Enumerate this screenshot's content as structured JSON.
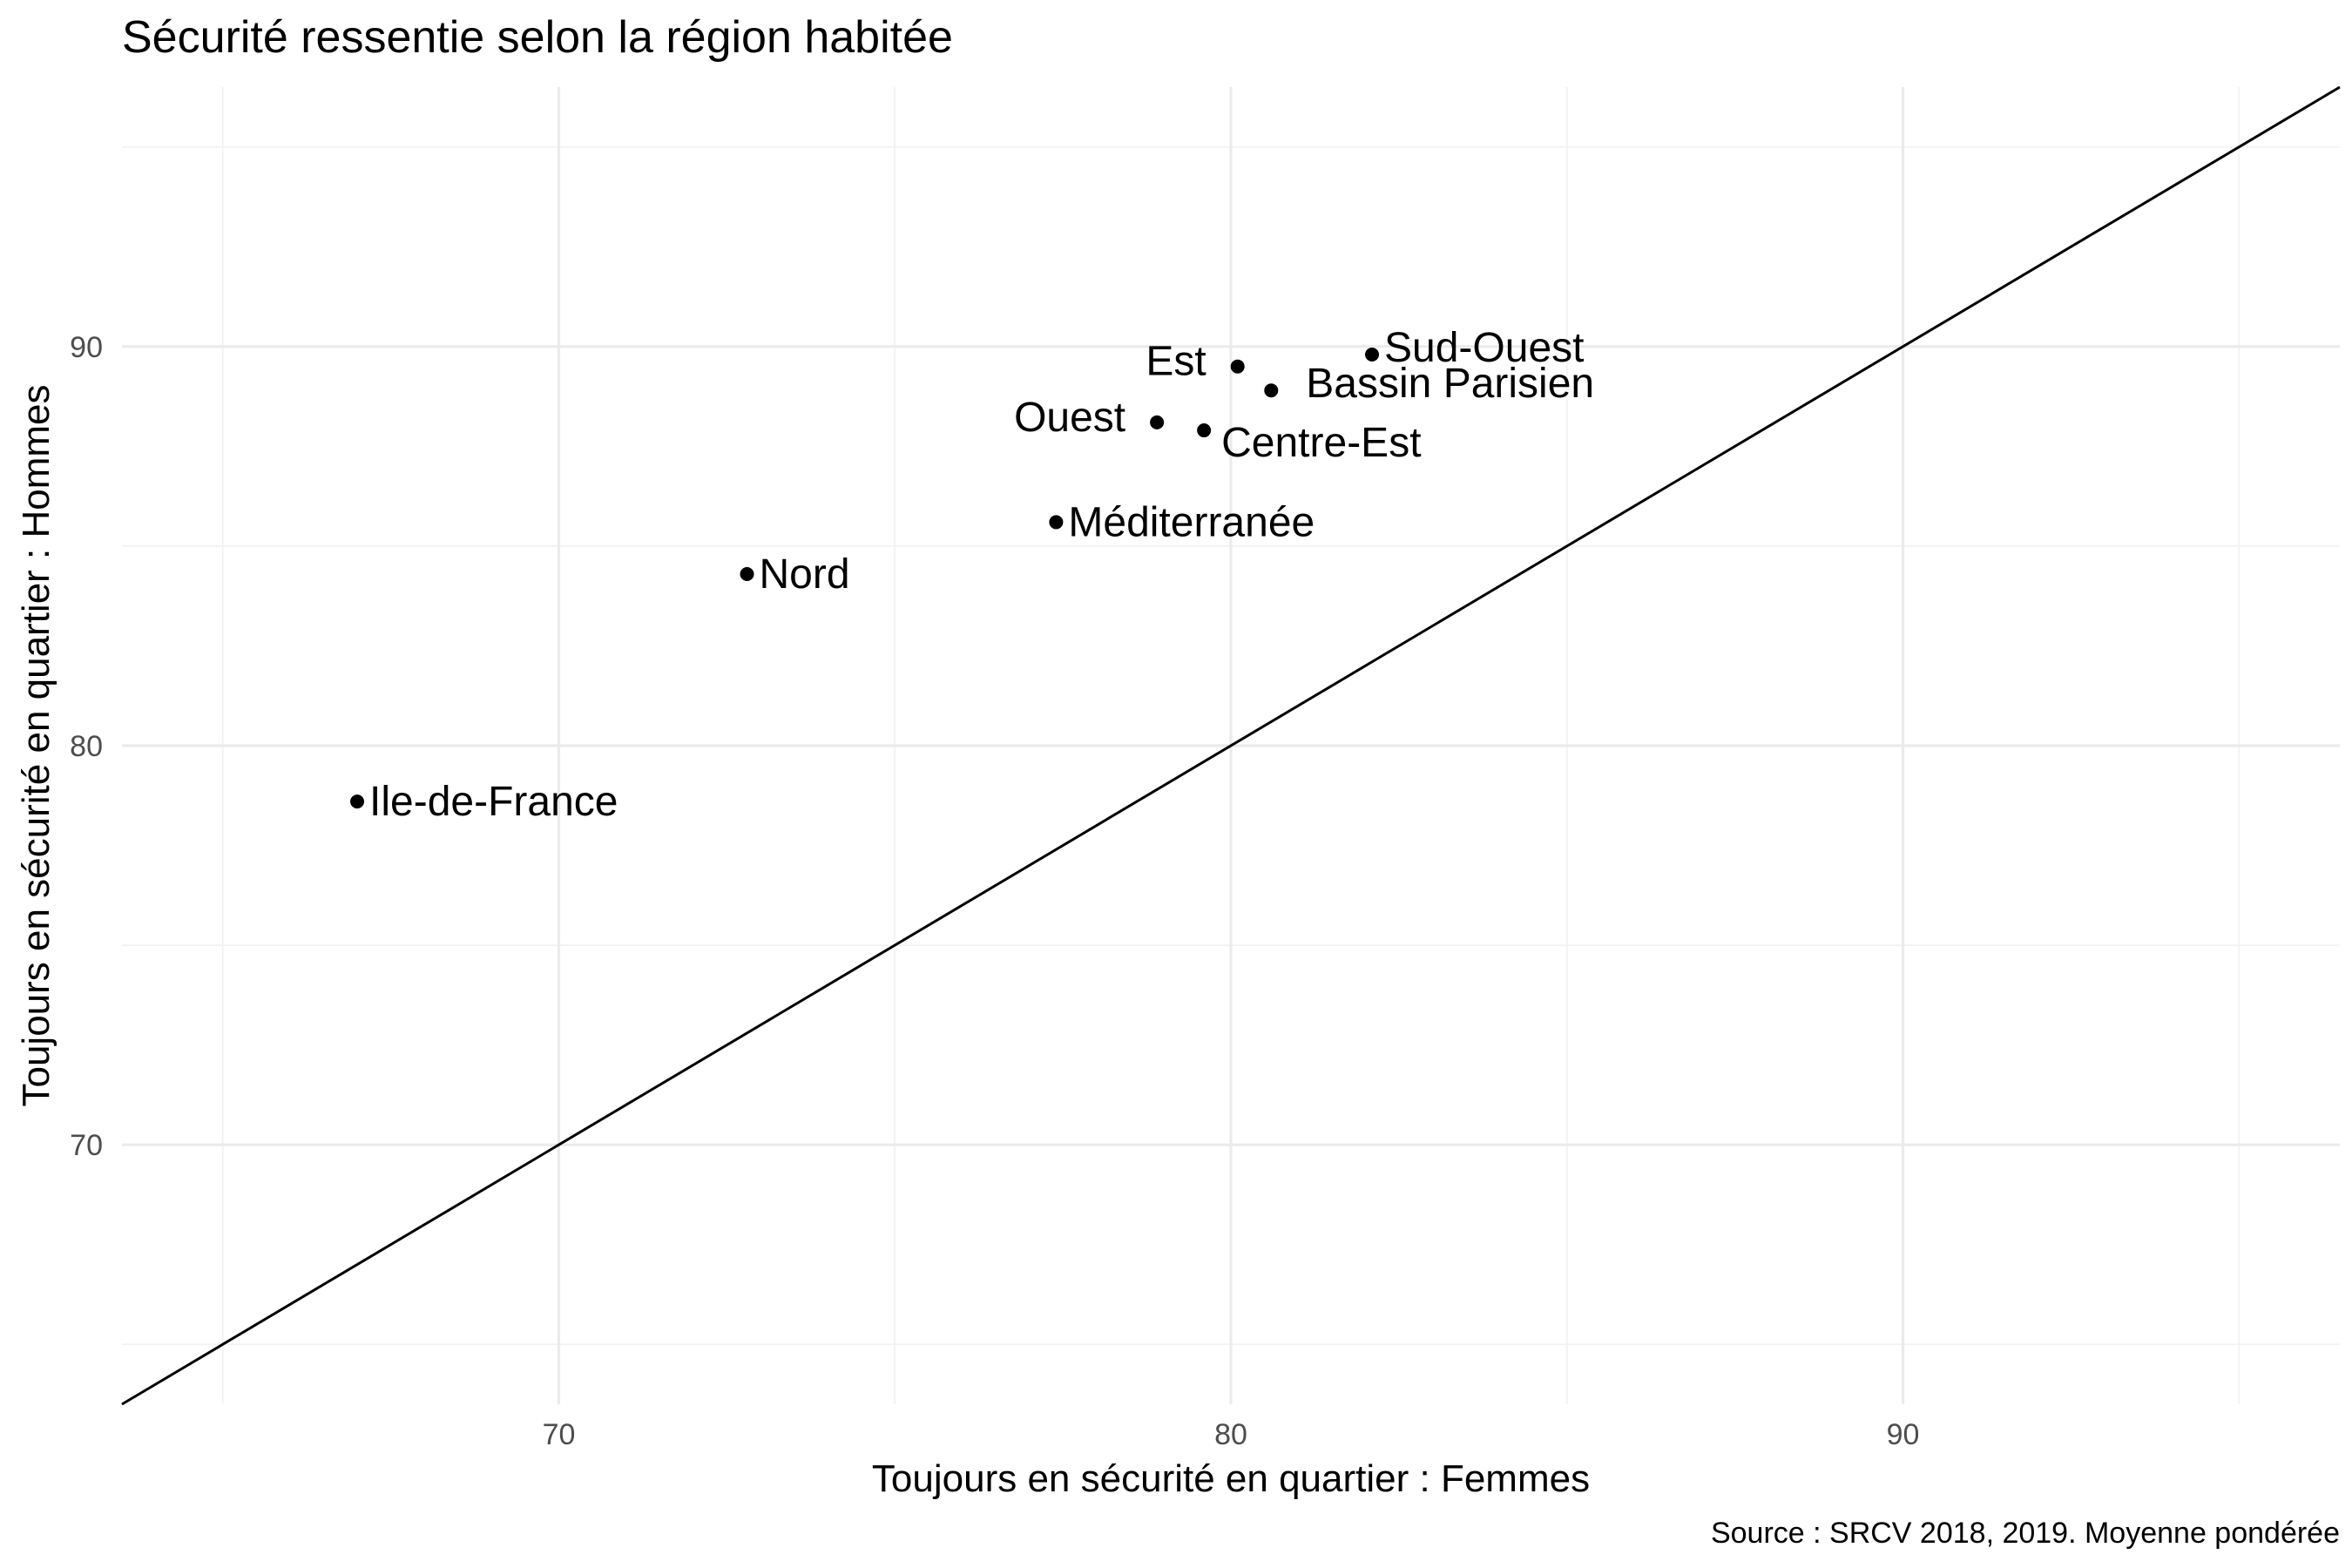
{
  "chart_data": {
    "type": "scatter",
    "title": "Sécurité ressentie selon la région habitée",
    "xlabel": "Toujours en sécurité en quartier : Femmes",
    "ylabel": "Toujours en sécurité en quartier : Hommes",
    "caption": "Source : SRCV 2018, 2019. Moyenne pondérée",
    "xlim": [
      63.5,
      96.5
    ],
    "ylim": [
      63.5,
      96.5
    ],
    "x_ticks": [
      70,
      80,
      90
    ],
    "y_ticks": [
      70,
      80,
      90
    ],
    "grid": true,
    "reference_line": {
      "slope": 1,
      "intercept": 0
    },
    "points": [
      {
        "label": "Ile-de-France",
        "x": 67.0,
        "y": 78.6
      },
      {
        "label": "Nord",
        "x": 72.8,
        "y": 84.3
      },
      {
        "label": "Méditerranée",
        "x": 77.4,
        "y": 85.6
      },
      {
        "label": "Ouest",
        "x": 78.9,
        "y": 88.1
      },
      {
        "label": "Centre-Est",
        "x": 79.6,
        "y": 87.9
      },
      {
        "label": "Est",
        "x": 80.1,
        "y": 89.5
      },
      {
        "label": "Bassin Parisien",
        "x": 80.6,
        "y": 88.9
      },
      {
        "label": "Sud-Ouest",
        "x": 82.1,
        "y": 89.8
      }
    ]
  }
}
